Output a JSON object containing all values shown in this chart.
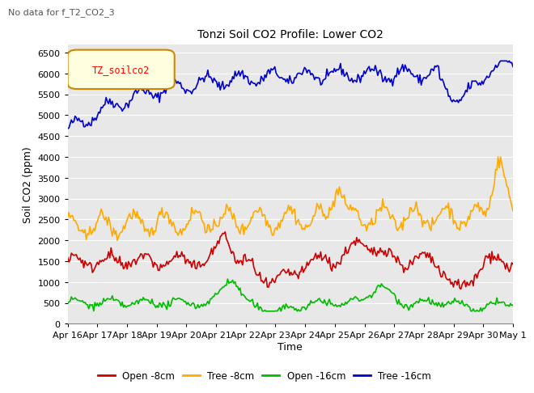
{
  "title": "Tonzi Soil CO2 Profile: Lower CO2",
  "subtitle": "No data for f_T2_CO2_3",
  "ylabel": "Soil CO2 (ppm)",
  "xlabel": "Time",
  "ylim": [
    0,
    6700
  ],
  "legend_label": "TZ_soilco2",
  "series_labels": [
    "Open -8cm",
    "Tree -8cm",
    "Open -16cm",
    "Tree -16cm"
  ],
  "series_colors": [
    "#cc0000",
    "#ffaa00",
    "#00bb00",
    "#0000cc"
  ],
  "x_tick_labels": [
    "Apr 16",
    "Apr 17",
    "Apr 18",
    "Apr 19",
    "Apr 20",
    "Apr 21",
    "Apr 22",
    "Apr 23",
    "Apr 24",
    "Apr 25",
    "Apr 26",
    "Apr 27",
    "Apr 28",
    "Apr 29",
    "Apr 30",
    "May 1"
  ],
  "background_color": "#ffffff",
  "plot_bg_color": "#e8e8e8"
}
